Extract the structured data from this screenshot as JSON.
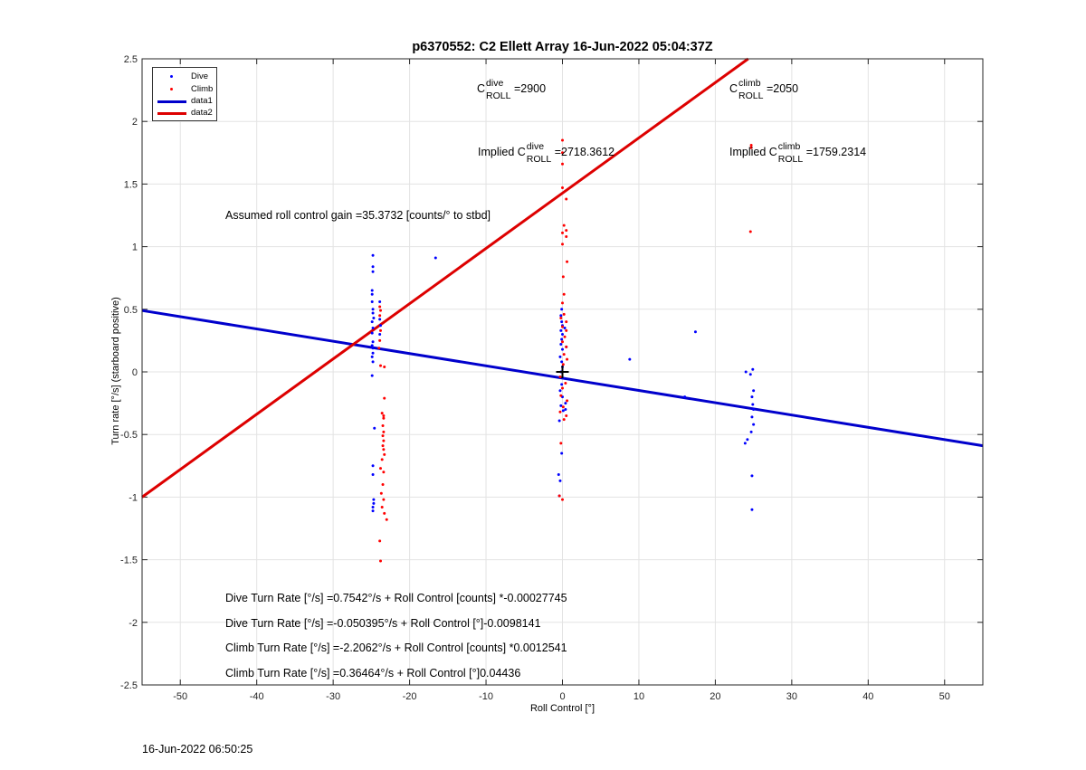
{
  "chart_data": {
    "type": "scatter",
    "title": "p6370552: C2 Ellett Array 16-Jun-2022 05:04:37Z",
    "xlabel": "Roll Control [°]",
    "ylabel": "Turn rate [°/s] (starboard positive)",
    "xlim": [
      -55,
      55
    ],
    "ylim": [
      -2.5,
      2.5
    ],
    "xticks": [
      -50,
      -40,
      -30,
      -20,
      -10,
      0,
      10,
      20,
      30,
      40,
      50
    ],
    "yticks": [
      -2.5,
      -2,
      -1.5,
      -1,
      -0.5,
      0,
      0.5,
      1,
      1.5,
      2,
      2.5
    ],
    "grid": true,
    "legend_position": "top-left",
    "series": [
      {
        "name": "Dive",
        "kind": "points",
        "color": "#0000ff",
        "points": [
          [
            -24.8,
            0.93
          ],
          [
            -24.8,
            0.84
          ],
          [
            -24.8,
            0.8
          ],
          [
            -24.9,
            0.65
          ],
          [
            -24.9,
            0.62
          ],
          [
            -24.9,
            0.56
          ],
          [
            -24.8,
            0.5
          ],
          [
            -24.8,
            0.47
          ],
          [
            -24.7,
            0.43
          ],
          [
            -24.9,
            0.4
          ],
          [
            -24.8,
            0.35
          ],
          [
            -24.9,
            0.31
          ],
          [
            -24.8,
            0.24
          ],
          [
            -24.9,
            0.21
          ],
          [
            -24.8,
            0.19
          ],
          [
            -24.8,
            0.15
          ],
          [
            -24.9,
            0.12
          ],
          [
            -24.8,
            0.08
          ],
          [
            -24.9,
            -0.03
          ],
          [
            -24.6,
            -0.45
          ],
          [
            -24.8,
            -0.75
          ],
          [
            -24.8,
            -0.82
          ],
          [
            -24.7,
            -1.02
          ],
          [
            -24.7,
            -1.05
          ],
          [
            -24.8,
            -1.08
          ],
          [
            -24.8,
            -1.11
          ],
          [
            -23.9,
            0.56
          ],
          [
            -23.9,
            0.42
          ],
          [
            -23.8,
            0.37
          ],
          [
            -23.9,
            0.3
          ],
          [
            -16.6,
            0.91
          ],
          [
            -0.1,
            0.5
          ],
          [
            -0.2,
            0.45
          ],
          [
            -0.1,
            0.4
          ],
          [
            0.0,
            0.37
          ],
          [
            -0.2,
            0.33
          ],
          [
            0.0,
            0.3
          ],
          [
            -0.1,
            0.26
          ],
          [
            -0.2,
            0.22
          ],
          [
            0.0,
            0.18
          ],
          [
            -0.3,
            0.12
          ],
          [
            -0.1,
            0.08
          ],
          [
            0.0,
            0.04
          ],
          [
            -0.2,
            0.0
          ],
          [
            0.1,
            -0.05
          ],
          [
            -0.1,
            -0.1
          ],
          [
            -0.3,
            -0.15
          ],
          [
            0.0,
            -0.2
          ],
          [
            -0.2,
            -0.27
          ],
          [
            0.1,
            -0.31
          ],
          [
            -0.4,
            -0.39
          ],
          [
            -0.1,
            -0.65
          ],
          [
            -0.5,
            -0.82
          ],
          [
            -0.3,
            -0.87
          ],
          [
            -0.4,
            -0.99
          ],
          [
            0.3,
            0.35
          ],
          [
            0.5,
            0.2
          ],
          [
            0.4,
            -0.25
          ],
          [
            0.4,
            -0.3
          ],
          [
            8.8,
            0.1
          ],
          [
            16.0,
            -0.2
          ],
          [
            17.4,
            0.32
          ],
          [
            24.0,
            0.0
          ],
          [
            24.6,
            -0.02
          ],
          [
            24.9,
            0.02
          ],
          [
            25.0,
            -0.15
          ],
          [
            24.8,
            -0.2
          ],
          [
            24.9,
            -0.26
          ],
          [
            25.0,
            -0.3
          ],
          [
            24.8,
            -0.36
          ],
          [
            25.0,
            -0.42
          ],
          [
            24.7,
            -0.48
          ],
          [
            24.2,
            -0.54
          ],
          [
            23.9,
            -0.57
          ],
          [
            24.8,
            -0.83
          ],
          [
            24.8,
            -1.1
          ]
        ]
      },
      {
        "name": "Climb",
        "kind": "points",
        "color": "#ff0000",
        "points": [
          [
            -23.9,
            0.52
          ],
          [
            -23.8,
            0.49
          ],
          [
            -23.9,
            0.45
          ],
          [
            -23.8,
            0.33
          ],
          [
            -23.9,
            0.25
          ],
          [
            -24.0,
            0.19
          ],
          [
            -23.8,
            0.05
          ],
          [
            -23.3,
            0.04
          ],
          [
            -23.3,
            -0.21
          ],
          [
            -23.6,
            -0.33
          ],
          [
            -23.4,
            -0.35
          ],
          [
            -23.4,
            -0.37
          ],
          [
            -23.5,
            -0.43
          ],
          [
            -23.4,
            -0.48
          ],
          [
            -23.5,
            -0.51
          ],
          [
            -23.4,
            -0.55
          ],
          [
            -23.5,
            -0.59
          ],
          [
            -23.4,
            -0.62
          ],
          [
            -23.3,
            -0.66
          ],
          [
            -23.6,
            -0.7
          ],
          [
            -23.8,
            -0.77
          ],
          [
            -23.4,
            -0.8
          ],
          [
            -23.5,
            -0.9
          ],
          [
            -23.7,
            -0.97
          ],
          [
            -23.4,
            -1.02
          ],
          [
            -23.6,
            -1.08
          ],
          [
            -23.3,
            -1.13
          ],
          [
            -23.0,
            -1.18
          ],
          [
            -23.9,
            -1.35
          ],
          [
            -23.8,
            -1.51
          ],
          [
            0.0,
            1.85
          ],
          [
            0.0,
            1.75
          ],
          [
            0.0,
            1.66
          ],
          [
            0.0,
            1.47
          ],
          [
            0.5,
            1.38
          ],
          [
            0.2,
            1.17
          ],
          [
            0.5,
            1.13
          ],
          [
            0.0,
            1.11
          ],
          [
            0.5,
            1.08
          ],
          [
            0.0,
            1.02
          ],
          [
            0.6,
            0.88
          ],
          [
            0.1,
            0.76
          ],
          [
            0.2,
            0.62
          ],
          [
            0.0,
            0.55
          ],
          [
            0.2,
            0.46
          ],
          [
            -0.2,
            0.43
          ],
          [
            0.5,
            0.4
          ],
          [
            0.0,
            0.36
          ],
          [
            0.5,
            0.33
          ],
          [
            0.3,
            0.28
          ],
          [
            0.0,
            0.24
          ],
          [
            0.5,
            0.2
          ],
          [
            0.2,
            0.14
          ],
          [
            0.6,
            0.1
          ],
          [
            0.1,
            0.06
          ],
          [
            -0.3,
            -0.04
          ],
          [
            0.4,
            -0.09
          ],
          [
            0.0,
            -0.13
          ],
          [
            -0.2,
            -0.19
          ],
          [
            0.6,
            -0.23
          ],
          [
            0.1,
            -0.28
          ],
          [
            -0.3,
            -0.32
          ],
          [
            0.5,
            -0.35
          ],
          [
            0.2,
            -0.38
          ],
          [
            -0.2,
            -0.57
          ],
          [
            -0.4,
            -0.99
          ],
          [
            0.0,
            -1.02
          ],
          [
            24.7,
            1.81
          ],
          [
            24.7,
            1.79
          ],
          [
            24.6,
            1.12
          ]
        ]
      },
      {
        "name": "data1",
        "kind": "line",
        "color": "#0000cc",
        "points": [
          [
            -55,
            0.49
          ],
          [
            55,
            -0.59
          ]
        ]
      },
      {
        "name": "data2",
        "kind": "line",
        "color": "#dd0000",
        "points": [
          [
            -55,
            -1.0
          ],
          [
            24.3,
            2.5
          ]
        ]
      }
    ],
    "marker": {
      "x": 0,
      "y": 0,
      "symbol": "+"
    },
    "annotations": {
      "c_dive": {
        "base": "C",
        "sup": "dive",
        "sub": "ROLL",
        "suffix": " =2900"
      },
      "c_climb": {
        "base": "C",
        "sup": "climb",
        "sub": "ROLL",
        "suffix": " =2050"
      },
      "implied_dive": {
        "prefix": "Implied C",
        "sup": "dive",
        "sub": "ROLL",
        "suffix": " =2718.3612"
      },
      "implied_climb": {
        "prefix": "Implied C",
        "sup": "climb",
        "sub": "ROLL",
        "suffix": " =1759.2314"
      },
      "gain": "Assumed roll control gain =35.3732 [counts/° to stbd]",
      "eq1": "Dive Turn Rate [°/s] =0.7542°/s + Roll Control [counts] *-0.00027745",
      "eq2": "Dive Turn Rate [°/s] =-0.050395°/s + Roll Control [°]-0.0098141",
      "eq3": "Climb Turn Rate [°/s] =-2.2062°/s + Roll Control [counts] *0.0012541",
      "eq4": "Climb Turn Rate [°/s] =0.36464°/s + Roll Control [°]0.04436"
    }
  },
  "footer": {
    "timestamp": "16-Jun-2022 06:50:25"
  }
}
